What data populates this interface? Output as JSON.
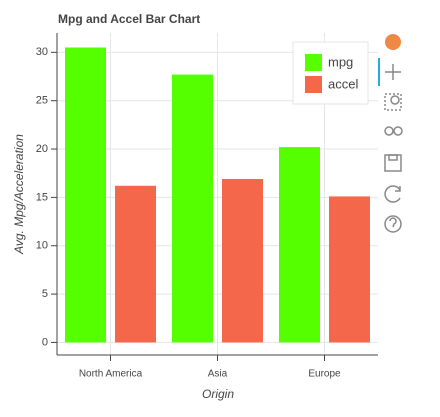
{
  "chart_data": {
    "type": "bar",
    "title": "Mpg and Accel Bar Chart",
    "x_label": "Origin",
    "y_label": "Avg. Mpg/Acceleration",
    "categories": [
      "North America",
      "Asia",
      "Europe"
    ],
    "series": [
      {
        "name": "mpg",
        "color": "#55ff00",
        "values": [
          30.5,
          27.7,
          20.2
        ]
      },
      {
        "name": "accel",
        "color": "#f5674b",
        "values": [
          16.2,
          16.9,
          15.1
        ]
      }
    ],
    "ylim": [
      -1.3,
      32
    ],
    "yticks": [
      0,
      5,
      10,
      15,
      20,
      25,
      30
    ],
    "grid": true,
    "legend": "top-right"
  }
}
